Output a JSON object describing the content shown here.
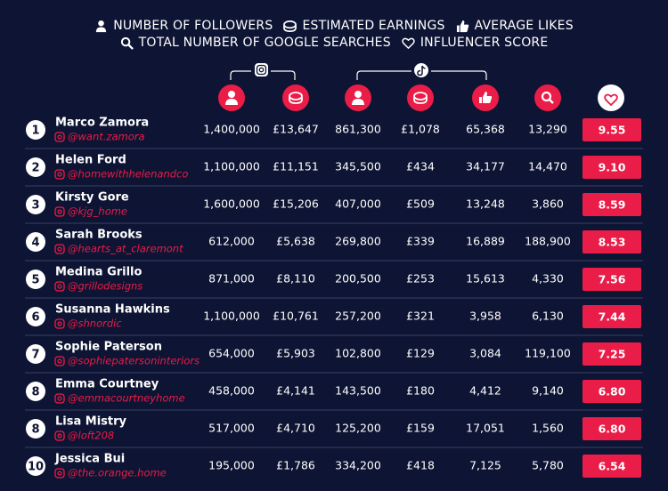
{
  "legend": [
    "NUMBER OF FOLLOWERS",
    "ESTIMATED EARNINGS",
    "AVERAGE LIKES",
    "TOTAL NUMBER OF GOOGLE SEARCHES",
    "INFLUENCER SCORE"
  ],
  "rows": [
    {
      "rank": "1",
      "name": "Marco Zamora",
      "handle": "@want.zamora",
      "values": [
        "1,400,000",
        "£13,647",
        "861,300",
        "£1,078",
        "65,368",
        "13,290"
      ],
      "score": "9.55"
    },
    {
      "rank": "2",
      "name": "Helen Ford",
      "handle": "@homewithhelenandco",
      "values": [
        "1,100,000",
        "£11,151",
        "345,500",
        "£434",
        "34,177",
        "14,470"
      ],
      "score": "9.10"
    },
    {
      "rank": "3",
      "name": "Kirsty Gore",
      "handle": "@kjg_home",
      "values": [
        "1,600,000",
        "£15,206",
        "407,000",
        "£509",
        "13,248",
        "3,860"
      ],
      "score": "8.59"
    },
    {
      "rank": "4",
      "name": "Sarah Brooks",
      "handle": "@hearts_at_claremont",
      "values": [
        "612,000",
        "£5,638",
        "269,800",
        "£339",
        "16,889",
        "188,900"
      ],
      "score": "8.53"
    },
    {
      "rank": "5",
      "name": "Medina Grillo",
      "handle": "@grillodesigns",
      "values": [
        "871,000",
        "£8,110",
        "200,500",
        "£253",
        "15,613",
        "4,330"
      ],
      "score": "7.56"
    },
    {
      "rank": "6",
      "name": "Susanna Hawkins",
      "handle": "@shnordic",
      "values": [
        "1,100,000",
        "£10,761",
        "257,200",
        "£321",
        "3,958",
        "6,130"
      ],
      "score": "7.44"
    },
    {
      "rank": "7",
      "name": "Sophie Paterson",
      "handle": "@sophiepatersoninteriors",
      "values": [
        "654,000",
        "£5,903",
        "102,800",
        "£129",
        "3,084",
        "119,100"
      ],
      "score": "7.25"
    },
    {
      "rank": "8",
      "name": "Emma Courtney",
      "handle": "@emmacourtneyhome",
      "values": [
        "458,000",
        "£4,141",
        "143,500",
        "£180",
        "4,412",
        "9,140"
      ],
      "score": "6.80"
    },
    {
      "rank": "8",
      "name": "Lisa Mistry",
      "handle": "@loft208",
      "values": [
        "517,000",
        "£4,710",
        "125,200",
        "£159",
        "17,051",
        "1,560"
      ],
      "score": "6.80"
    },
    {
      "rank": "10",
      "name": "Jessica Bui",
      "handle": "@the.orange.home",
      "values": [
        "195,000",
        "£1,786",
        "334,200",
        "£418",
        "7,125",
        "5,780"
      ],
      "score": "6.54"
    }
  ]
}
